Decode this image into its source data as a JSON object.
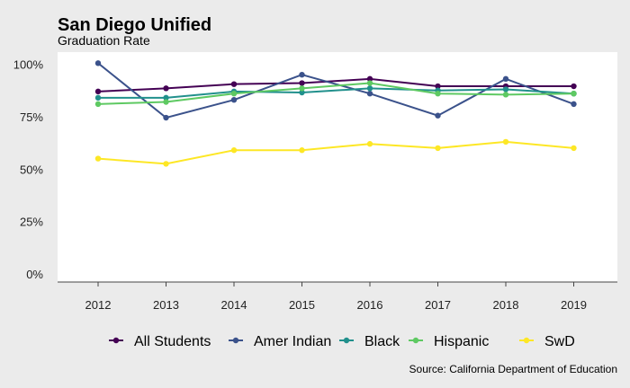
{
  "chart_data": {
    "type": "line",
    "title": "San Diego Unified",
    "subtitle": "Graduation Rate",
    "caption": "Source: California Department of Education",
    "xlabel": "",
    "ylabel": "",
    "x": [
      "2012",
      "2013",
      "2014",
      "2015",
      "2016",
      "2017",
      "2018",
      "2019"
    ],
    "y_ticks": [
      "0%",
      "25%",
      "50%",
      "75%",
      "100%"
    ],
    "ylim": [
      0,
      100
    ],
    "grid": false,
    "legend_position": "bottom",
    "series": [
      {
        "name": "All Students",
        "color": "#440154",
        "values": [
          87,
          88.5,
          90.5,
          91,
          93,
          89.5,
          89.5,
          89.5
        ]
      },
      {
        "name": "Amer Indian",
        "color": "#3b528b",
        "values": [
          100.5,
          74.5,
          83,
          95,
          86,
          75.5,
          93,
          81
        ]
      },
      {
        "name": "Black",
        "color": "#21908c",
        "values": [
          84,
          84,
          87,
          86.5,
          88.5,
          87.5,
          88,
          86
        ]
      },
      {
        "name": "Hispanic",
        "color": "#5ec962",
        "values": [
          81,
          82,
          86,
          88.5,
          91,
          86,
          85.5,
          86
        ]
      },
      {
        "name": "SwD",
        "color": "#fde725",
        "values": [
          55,
          52.5,
          59,
          59,
          62,
          60,
          63,
          60
        ]
      }
    ]
  }
}
